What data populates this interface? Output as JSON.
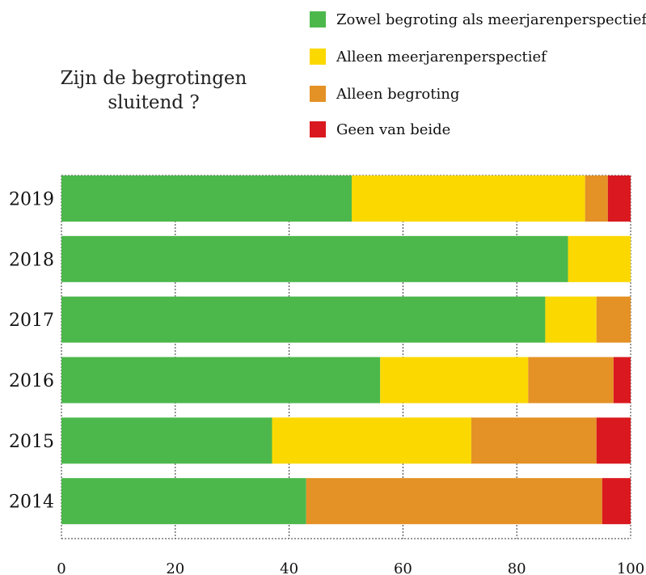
{
  "chart_data": {
    "type": "stacked-barh",
    "title": "Zijn de begrotingen sluitend ?",
    "categories": [
      "2019",
      "2018",
      "2017",
      "2016",
      "2015",
      "2014"
    ],
    "series": [
      {
        "name": "Zowel begroting als meerjarenperspectief",
        "color": "#4cb84c",
        "values": [
          51,
          89,
          85,
          56,
          37,
          43
        ]
      },
      {
        "name": "Alleen meerjarenperspectief",
        "color": "#fbd800",
        "values": [
          41,
          11,
          9,
          26,
          35,
          0
        ]
      },
      {
        "name": "Alleen begroting",
        "color": "#e49125",
        "values": [
          4,
          0,
          6,
          15,
          22,
          52
        ]
      },
      {
        "name": "Geen van beide",
        "color": "#d9191f",
        "values": [
          4,
          0,
          0,
          3,
          6,
          5
        ]
      }
    ],
    "xlim": [
      0,
      100
    ],
    "xticks": [
      0,
      20,
      40,
      60,
      80,
      100
    ],
    "grid": true
  }
}
